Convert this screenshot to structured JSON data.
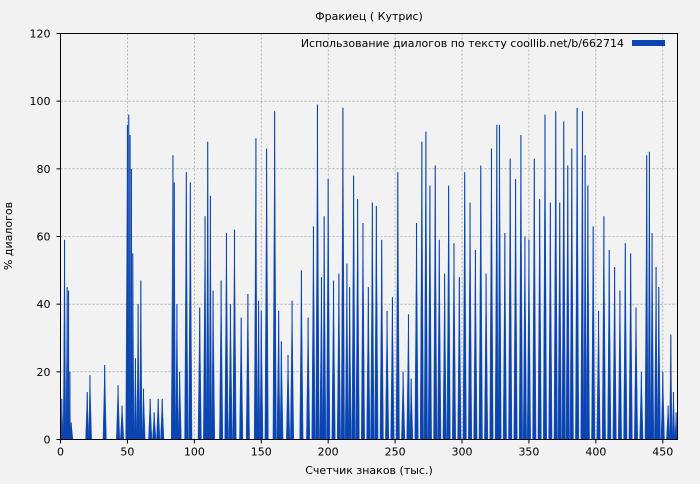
{
  "chart_data": {
    "type": "bar",
    "title": "Фракиец ( Кутрис)",
    "xlabel": "Счетчик знаков (тыс.)",
    "ylabel": "% диалогов",
    "xlim": [
      0,
      461
    ],
    "ylim": [
      0,
      120
    ],
    "xticks": [
      0,
      50,
      100,
      150,
      200,
      250,
      300,
      350,
      400,
      450
    ],
    "yticks": [
      0,
      20,
      40,
      60,
      80,
      100,
      120
    ],
    "grid": true,
    "legend_position": "top-right",
    "series": [
      {
        "name": "Использование диалогов по тексту coollib.net/b/662714",
        "color": "#0a44b0",
        "peaks": [
          [
            1,
            12
          ],
          [
            3,
            59
          ],
          [
            5,
            45
          ],
          [
            6,
            44
          ],
          [
            7,
            20
          ],
          [
            8,
            5
          ],
          [
            20,
            14
          ],
          [
            22,
            19
          ],
          [
            33,
            22
          ],
          [
            43,
            16
          ],
          [
            46,
            10
          ],
          [
            50,
            93
          ],
          [
            51,
            96
          ],
          [
            52,
            90
          ],
          [
            53,
            80
          ],
          [
            54,
            55
          ],
          [
            56,
            24
          ],
          [
            58,
            40
          ],
          [
            60,
            47
          ],
          [
            62,
            15
          ],
          [
            67,
            12
          ],
          [
            70,
            8
          ],
          [
            73,
            12
          ],
          [
            76,
            12
          ],
          [
            84,
            84
          ],
          [
            85,
            76
          ],
          [
            87,
            40
          ],
          [
            89,
            20
          ],
          [
            94,
            79
          ],
          [
            97,
            76
          ],
          [
            104,
            39
          ],
          [
            108,
            66
          ],
          [
            110,
            88
          ],
          [
            112,
            72
          ],
          [
            114,
            44
          ],
          [
            120,
            47
          ],
          [
            124,
            61
          ],
          [
            127,
            40
          ],
          [
            130,
            62
          ],
          [
            135,
            36
          ],
          [
            140,
            43
          ],
          [
            146,
            89
          ],
          [
            148,
            41
          ],
          [
            150,
            38
          ],
          [
            154,
            86
          ],
          [
            160,
            97
          ],
          [
            163,
            38
          ],
          [
            165,
            29
          ],
          [
            170,
            25
          ],
          [
            173,
            41
          ],
          [
            180,
            50
          ],
          [
            185,
            36
          ],
          [
            189,
            63
          ],
          [
            192,
            99
          ],
          [
            195,
            48
          ],
          [
            197,
            66
          ],
          [
            200,
            77
          ],
          [
            204,
            47
          ],
          [
            208,
            49
          ],
          [
            211,
            98
          ],
          [
            214,
            52
          ],
          [
            216,
            45
          ],
          [
            219,
            78
          ],
          [
            222,
            71
          ],
          [
            226,
            64
          ],
          [
            230,
            45
          ],
          [
            233,
            70
          ],
          [
            236,
            69
          ],
          [
            240,
            59
          ],
          [
            244,
            38
          ],
          [
            248,
            42
          ],
          [
            252,
            79
          ],
          [
            256,
            20
          ],
          [
            260,
            37
          ],
          [
            262,
            18
          ],
          [
            266,
            64
          ],
          [
            270,
            88
          ],
          [
            273,
            91
          ],
          [
            276,
            75
          ],
          [
            280,
            81
          ],
          [
            283,
            59
          ],
          [
            287,
            49
          ],
          [
            290,
            75
          ],
          [
            294,
            58
          ],
          [
            298,
            48
          ],
          [
            302,
            79
          ],
          [
            306,
            70
          ],
          [
            310,
            56
          ],
          [
            314,
            81
          ],
          [
            318,
            49
          ],
          [
            322,
            86
          ],
          [
            326,
            93
          ],
          [
            328,
            93
          ],
          [
            332,
            61
          ],
          [
            336,
            83
          ],
          [
            340,
            77
          ],
          [
            344,
            90
          ],
          [
            347,
            60
          ],
          [
            350,
            59
          ],
          [
            354,
            83
          ],
          [
            358,
            71
          ],
          [
            362,
            96
          ],
          [
            366,
            70
          ],
          [
            370,
            97
          ],
          [
            373,
            70
          ],
          [
            376,
            94
          ],
          [
            379,
            81
          ],
          [
            382,
            86
          ],
          [
            386,
            98
          ],
          [
            390,
            97
          ],
          [
            392,
            84
          ],
          [
            394,
            75
          ],
          [
            398,
            63
          ],
          [
            402,
            38
          ],
          [
            406,
            66
          ],
          [
            410,
            56
          ],
          [
            414,
            51
          ],
          [
            418,
            44
          ],
          [
            422,
            58
          ],
          [
            426,
            55
          ],
          [
            430,
            39
          ],
          [
            434,
            20
          ],
          [
            438,
            84
          ],
          [
            440,
            85
          ],
          [
            442,
            61
          ],
          [
            445,
            51
          ],
          [
            447,
            45
          ],
          [
            450,
            20
          ],
          [
            454,
            10
          ],
          [
            456,
            31
          ],
          [
            458,
            14
          ],
          [
            460,
            8
          ]
        ]
      }
    ]
  }
}
